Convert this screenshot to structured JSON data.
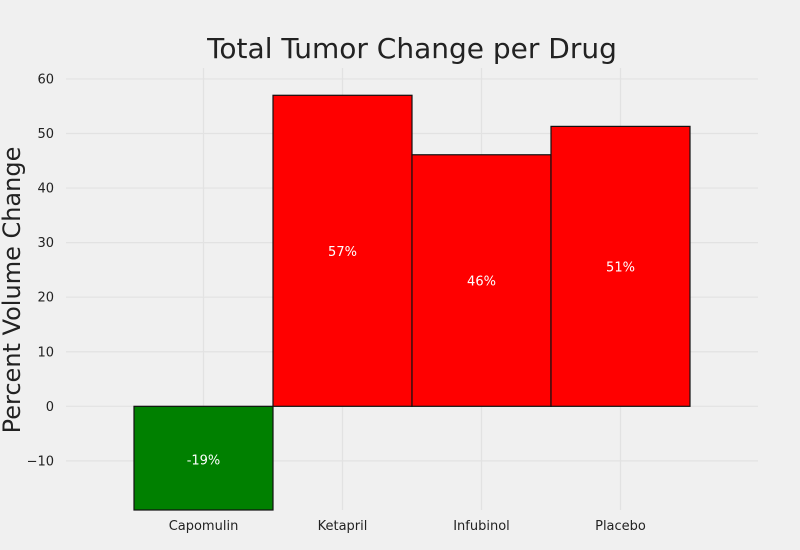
{
  "chart_data": {
    "type": "bar",
    "title": "Total Tumor Change per Drug",
    "xlabel": "",
    "ylabel": "Percent Volume Change",
    "categories": [
      "Capomulin",
      "Ketapril",
      "Infubinol",
      "Placebo"
    ],
    "values": [
      -19.5,
      57.0,
      46.1,
      51.3
    ],
    "data_labels": [
      "-19%",
      "57%",
      "46%",
      "51%"
    ],
    "bar_colors": [
      "#008000",
      "#ff0000",
      "#ff0000",
      "#ff0000"
    ],
    "ylim": [
      -19,
      62
    ],
    "yticks": [
      -10,
      0,
      10,
      20,
      30,
      40,
      50,
      60
    ],
    "ytick_labels": [
      "−10",
      "0",
      "10",
      "20",
      "30",
      "40",
      "50",
      "60"
    ],
    "grid": true,
    "legend": "none"
  }
}
